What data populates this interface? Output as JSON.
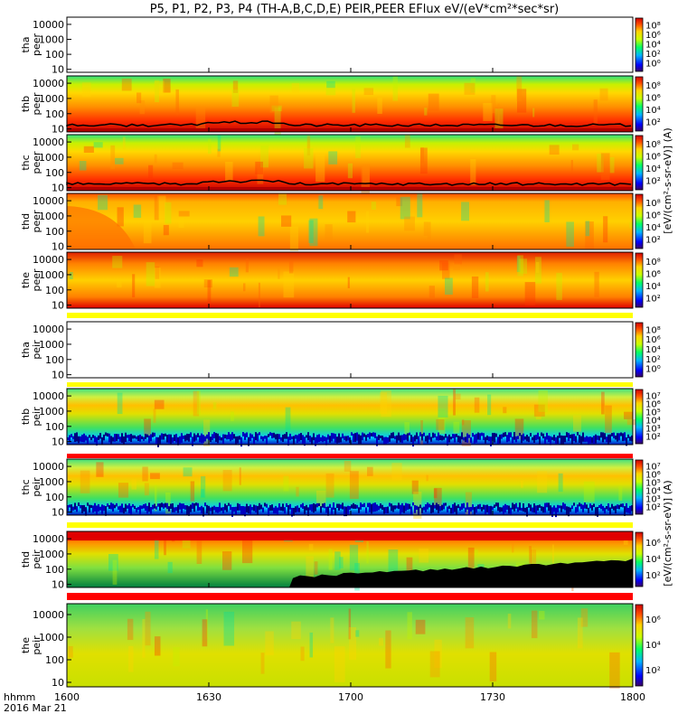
{
  "chart_data": {
    "type": "heatmap",
    "title": "P5, P1, P2, P3, P4 (TH-A,B,C,D,E) PEIR,PEER EFlux eV/(eV*cm²*sec*sr)",
    "x_ticks": [
      "1600",
      "1630",
      "1700",
      "1730",
      "1800"
    ],
    "x_label_line1": "hhmm",
    "x_label_line2": "2016 Mar 21",
    "y_ticks": [
      "10",
      "100",
      "1000",
      "10000"
    ],
    "colorbar_label_peer": "[eV/(cm²-s-sr-eV)] (A)",
    "colorbar_label_peir": "[eV/(cm²-s-sr-eV)] (A)",
    "panels": [
      {
        "probe": "tha",
        "species": "peer",
        "data": false,
        "colorbar": [
          "10⁰",
          "10²",
          "10⁴",
          "10⁶",
          "10⁸"
        ]
      },
      {
        "probe": "thb",
        "species": "peer",
        "data": true,
        "colorbar": [
          "10²",
          "10⁴",
          "10⁶",
          "10⁸"
        ]
      },
      {
        "probe": "thc",
        "species": "peer",
        "data": true,
        "colorbar": [
          "10²",
          "10⁴",
          "10⁶",
          "10⁸"
        ]
      },
      {
        "probe": "thd",
        "species": "peer",
        "data": true,
        "colorbar": [
          "10²",
          "10⁴",
          "10⁶",
          "10⁸"
        ]
      },
      {
        "probe": "the",
        "species": "peer",
        "data": true,
        "colorbar": [
          "10²",
          "10⁴",
          "10⁶",
          "10⁸"
        ]
      },
      {
        "probe": "tha",
        "species": "peir",
        "data": false,
        "colorbar": [
          "10⁰",
          "10²",
          "10⁴",
          "10⁶",
          "10⁸"
        ]
      },
      {
        "probe": "thb",
        "species": "peir",
        "data": true,
        "colorbar": [
          "10²",
          "10³",
          "10⁴",
          "10⁵",
          "10⁶",
          "10⁷"
        ]
      },
      {
        "probe": "thc",
        "species": "peir",
        "data": true,
        "colorbar": [
          "10²",
          "10³",
          "10⁴",
          "10⁵",
          "10⁶",
          "10⁷"
        ]
      },
      {
        "probe": "thd",
        "species": "peir",
        "data": true,
        "colorbar": [
          "10²",
          "10⁴",
          "10⁶"
        ]
      },
      {
        "probe": "the",
        "species": "peir",
        "data": true,
        "colorbar": [
          "10²",
          "10⁴",
          "10⁶"
        ]
      }
    ]
  }
}
